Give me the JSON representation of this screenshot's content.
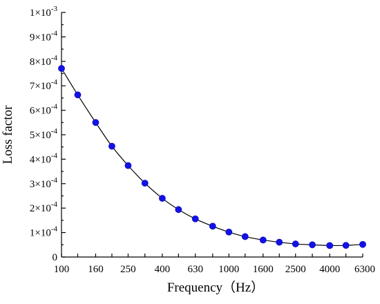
{
  "chart_data": {
    "type": "line",
    "title": "",
    "xlabel": "Frequency（Hz）",
    "ylabel": "Loss factor",
    "x_scale": "log (one-third octave)",
    "x_tick_labels": [
      "100",
      "160",
      "250",
      "400",
      "630",
      "1000",
      "1600",
      "2500",
      "4000",
      "6300"
    ],
    "y_tick_labels": [
      {
        "mantissa": "0",
        "exp": ""
      },
      {
        "mantissa": "1×10",
        "exp": "-4"
      },
      {
        "mantissa": "2×10",
        "exp": "-4"
      },
      {
        "mantissa": "3×10",
        "exp": "-4"
      },
      {
        "mantissa": "4×10",
        "exp": "-4"
      },
      {
        "mantissa": "5×10",
        "exp": "-4"
      },
      {
        "mantissa": "6×10",
        "exp": "-4"
      },
      {
        "mantissa": "7×10",
        "exp": "-4"
      },
      {
        "mantissa": "8×10",
        "exp": "-4"
      },
      {
        "mantissa": "9×10",
        "exp": "-4"
      },
      {
        "mantissa": "1×10",
        "exp": "-3"
      }
    ],
    "ylim": [
      0,
      0.001
    ],
    "xlim": [
      100,
      6300
    ],
    "grid": false,
    "legend": "none",
    "series": [
      {
        "color": "#1212e6",
        "x": [
          100,
          125,
          160,
          200,
          250,
          315,
          400,
          500,
          630,
          800,
          1000,
          1250,
          1600,
          2000,
          2500,
          3150,
          4000,
          5000,
          6300
        ],
        "y": [
          0.000771,
          0.000663,
          0.00055,
          0.000453,
          0.000374,
          0.000302,
          0.00024,
          0.000194,
          0.000156,
          0.000126,
          0.000102,
          8.35e-05,
          6.95e-05,
          6.05e-05,
          5.35e-05,
          5e-05,
          4.7e-05,
          4.75e-05,
          5.15e-05
        ]
      }
    ]
  }
}
